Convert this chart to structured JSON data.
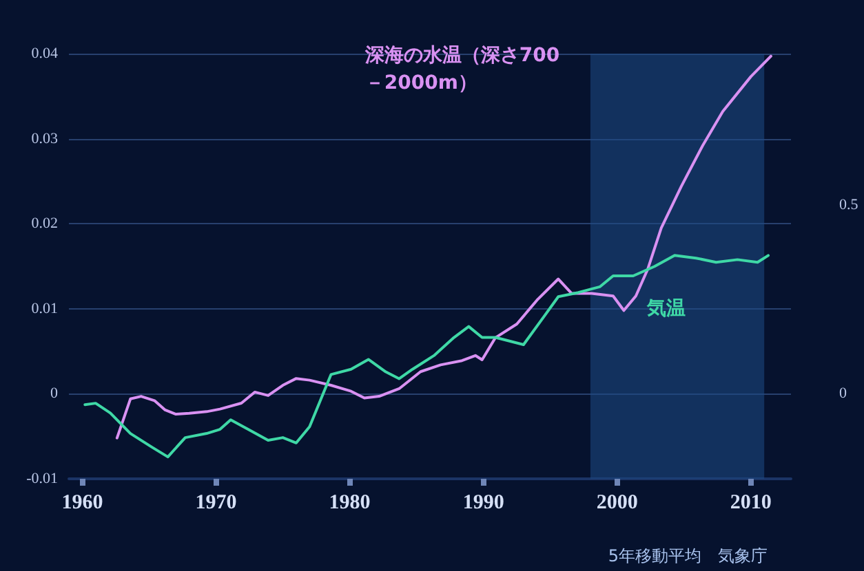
{
  "chart_data": {
    "type": "line",
    "xlim": [
      1959,
      2013
    ],
    "xticks": [
      1960,
      1970,
      1980,
      1990,
      2000,
      2010
    ],
    "ylim": [
      -0.01,
      0.04
    ],
    "yticks": [
      -0.01,
      0,
      0.01,
      0.02,
      0.03,
      0.04
    ],
    "y2lim": [
      -0.225,
      0.9
    ],
    "y2ticks": [
      0,
      0.5
    ],
    "grid": "y",
    "legend": false,
    "marker": "none",
    "line_style": "solid",
    "bands": [
      {
        "axis": "x",
        "from": 1998,
        "to": 2011,
        "color": "#1d4a86"
      }
    ],
    "annotations": [
      "5年移動平均　気象庁"
    ],
    "series": [
      {
        "name": "深海の水温（深さ700－2000m）",
        "color": "#d991f2",
        "x": [
          1962.6,
          1963.6,
          1964.4,
          1965.4,
          1966.2,
          1967.0,
          1968.0,
          1969.3,
          1970.3,
          1971.9,
          1972.9,
          1973.9,
          1975.0,
          1976.0,
          1977.0,
          1978.6,
          1980.1,
          1981.1,
          1982.2,
          1983.7,
          1985.3,
          1986.8,
          1988.4,
          1989.4,
          1989.9,
          1990.9,
          1992.5,
          1994.0,
          1995.6,
          1996.6,
          1998.1,
          1999.7,
          2000.5,
          2001.4,
          2002.3,
          2003.3,
          2004.8,
          2006.4,
          2007.9,
          2010.0,
          2011.5
        ],
        "values": [
          -0.0052,
          -0.0006,
          -0.0003,
          -0.0008,
          -0.0019,
          -0.0024,
          -0.0023,
          -0.0021,
          -0.0018,
          -0.0011,
          0.0002,
          -0.0002,
          0.001,
          0.0018,
          0.0016,
          0.001,
          0.0003,
          -0.0005,
          -0.0003,
          0.0006,
          0.0026,
          0.0034,
          0.0039,
          0.0045,
          0.004,
          0.0066,
          0.0082,
          0.011,
          0.0135,
          0.0118,
          0.0118,
          0.0115,
          0.0098,
          0.0115,
          0.0147,
          0.0195,
          0.0244,
          0.0292,
          0.0332,
          0.0373,
          0.0397
        ]
      },
      {
        "name": "気温",
        "color": "#3fd8a6",
        "axis": "y2",
        "x": [
          1960.2,
          1961.0,
          1962.1,
          1963.6,
          1965.2,
          1966.4,
          1967.7,
          1969.3,
          1970.3,
          1971.1,
          1972.4,
          1973.9,
          1975.0,
          1976.0,
          1977.0,
          1978.6,
          1980.1,
          1981.4,
          1982.7,
          1983.7,
          1984.7,
          1986.3,
          1987.8,
          1988.9,
          1989.9,
          1990.9,
          1993.0,
          1994.5,
          1995.6,
          1997.1,
          1998.7,
          1999.7,
          2001.2,
          2002.8,
          2004.3,
          2005.9,
          2007.4,
          2009.0,
          2010.5,
          2011.3
        ],
        "values": [
          -0.029,
          -0.025,
          -0.051,
          -0.105,
          -0.141,
          -0.167,
          -0.116,
          -0.105,
          -0.094,
          -0.069,
          -0.094,
          -0.123,
          -0.116,
          -0.13,
          -0.087,
          0.051,
          0.065,
          0.091,
          0.058,
          0.04,
          0.065,
          0.101,
          0.149,
          0.178,
          0.149,
          0.149,
          0.13,
          0.203,
          0.257,
          0.268,
          0.283,
          0.312,
          0.312,
          0.337,
          0.366,
          0.359,
          0.348,
          0.355,
          0.348,
          0.366
        ]
      }
    ]
  }
}
